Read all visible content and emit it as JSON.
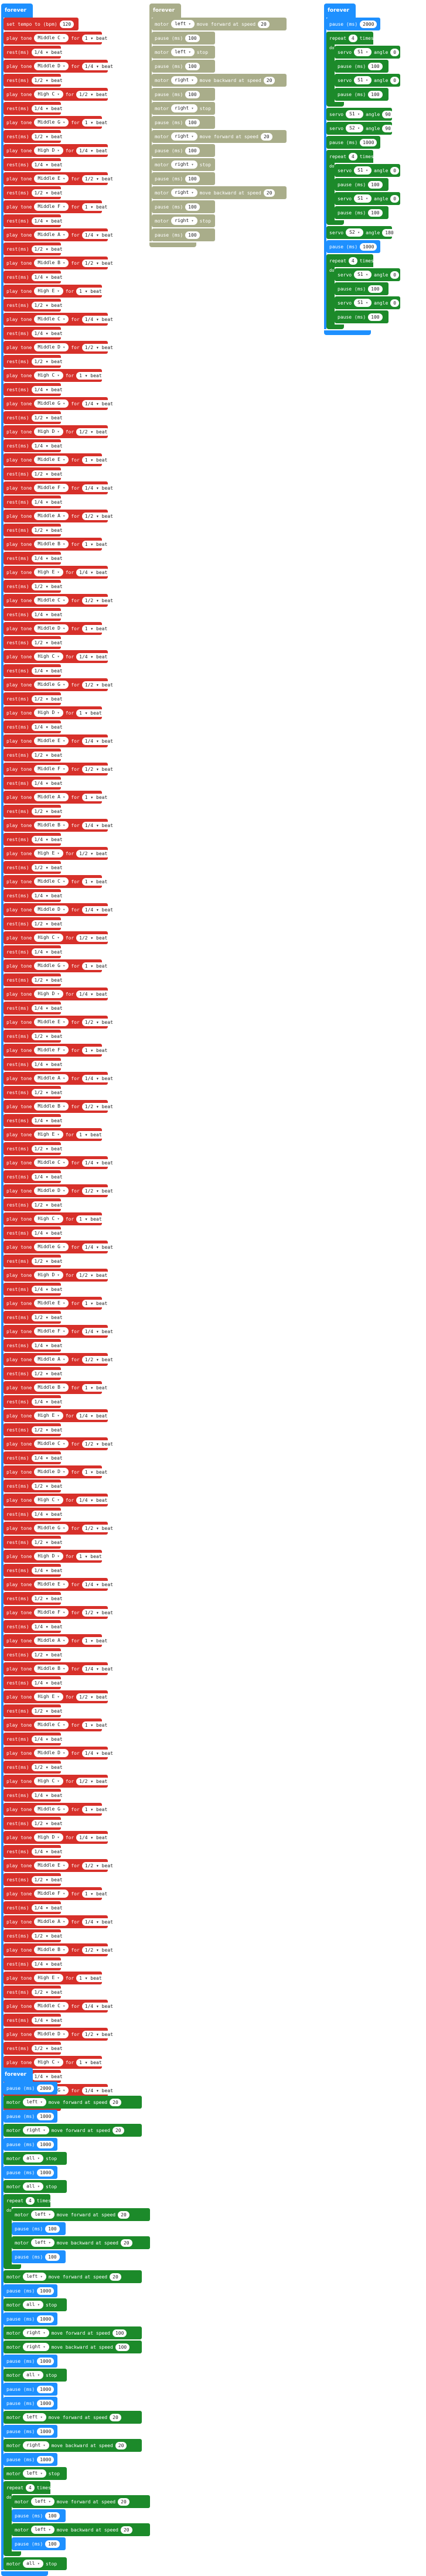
{
  "music_stack": {
    "hat": "forever",
    "first": {
      "label": "set tempo to (bpm)",
      "value": "120"
    },
    "play_label": "play tone",
    "for_label": "for",
    "rest_label": "rest(ms)",
    "beat_label": "beat",
    "notes": [
      "Middle C",
      "Middle D",
      "High C",
      "Middle G",
      "High D",
      "Middle E",
      "Middle F",
      "Middle A",
      "Middle B",
      "High E"
    ],
    "durations": [
      "1 ▾ beat",
      "1/2 ▾ beat",
      "1/4 ▾ beat"
    ],
    "rest_values": [
      "1/4 ▾ beat",
      "1/2 ▾ beat"
    ]
  },
  "olive_stack": {
    "hat": "forever",
    "lines": [
      {
        "kind": "motor",
        "text": "motor",
        "side": "left",
        "dir": "move forward",
        "speed": "20"
      },
      {
        "kind": "pause",
        "text": "pause (ms)",
        "value": "100"
      },
      {
        "kind": "stop",
        "text": "motor",
        "side": "left",
        "action": "stop"
      },
      {
        "kind": "pause",
        "text": "pause (ms)",
        "value": "100"
      },
      {
        "kind": "motor",
        "text": "motor",
        "side": "right",
        "dir": "move backward",
        "speed": "20"
      },
      {
        "kind": "pause",
        "text": "pause (ms)",
        "value": "100"
      },
      {
        "kind": "stop",
        "text": "motor",
        "side": "right",
        "action": "stop"
      },
      {
        "kind": "pause",
        "text": "pause (ms)",
        "value": "100"
      },
      {
        "kind": "motor",
        "text": "motor",
        "side": "right",
        "dir": "move forward",
        "speed": "20"
      },
      {
        "kind": "pause",
        "text": "pause (ms)",
        "value": "100"
      },
      {
        "kind": "stop",
        "text": "motor",
        "side": "right",
        "action": "stop"
      },
      {
        "kind": "pause",
        "text": "pause (ms)",
        "value": "100"
      },
      {
        "kind": "motor",
        "text": "motor",
        "side": "right",
        "dir": "move backward",
        "speed": "20"
      },
      {
        "kind": "pause",
        "text": "pause (ms)",
        "value": "100"
      },
      {
        "kind": "stop",
        "text": "motor",
        "side": "right",
        "action": "stop"
      },
      {
        "kind": "pause",
        "text": "pause (ms)",
        "value": "100"
      }
    ]
  },
  "servo_stack": {
    "hat": "forever",
    "pause1": {
      "label": "pause (ms)",
      "value": "2000"
    },
    "repeat1": {
      "label": "repeat",
      "times": "4",
      "times_label": "times",
      "do": "do"
    },
    "r1_lines": [
      {
        "label": "servo",
        "pin": "S1",
        "angle_label": "angle",
        "value": "0"
      },
      {
        "label": "pause (ms)",
        "value": "100"
      },
      {
        "label": "servo",
        "pin": "S1",
        "angle_label": "angle",
        "value": "0"
      },
      {
        "label": "pause (ms)",
        "value": "100"
      }
    ],
    "mid_lines": [
      {
        "label": "servo",
        "pin": "S1",
        "angle_label": "angle",
        "value": "90"
      },
      {
        "label": "servo",
        "pin": "S2",
        "angle_label": "angle",
        "value": "90"
      },
      {
        "label": "pause (ms)",
        "value": "1000"
      }
    ],
    "repeat2": {
      "label": "repeat",
      "times": "4",
      "times_label": "times",
      "do": "do"
    },
    "r2_lines": [
      {
        "label": "servo",
        "pin": "S1",
        "angle_label": "angle",
        "value": "0"
      },
      {
        "label": "pause (ms)",
        "value": "100"
      },
      {
        "label": "servo",
        "pin": "S1",
        "angle_label": "angle",
        "value": "0"
      },
      {
        "label": "pause (ms)",
        "value": "100"
      }
    ],
    "after2": {
      "label": "servo",
      "pin": "S2",
      "angle_label": "angle",
      "value": "180"
    },
    "pause3": {
      "label": "pause (ms)",
      "value": "1000"
    },
    "repeat3": {
      "label": "repeat",
      "times": "4",
      "times_label": "times",
      "do": "do"
    },
    "r3_lines": [
      {
        "label": "servo",
        "pin": "S1",
        "angle_label": "angle",
        "value": "0"
      },
      {
        "label": "pause (ms)",
        "value": "100"
      },
      {
        "label": "servo",
        "pin": "S1",
        "angle_label": "angle",
        "value": "0"
      },
      {
        "label": "pause (ms)",
        "value": "100"
      }
    ]
  },
  "motor_stack": {
    "hat": "forever",
    "lines": [
      {
        "label": "pause (ms)",
        "value": "2000",
        "kind": "pause"
      },
      {
        "label": "motor",
        "side": "left",
        "dir": "move forward",
        "speed": "20",
        "kind": "motor"
      },
      {
        "label": "pause (ms)",
        "value": "1000",
        "kind": "pause"
      },
      {
        "label": "motor",
        "side": "right",
        "dir": "move forward",
        "speed": "20",
        "kind": "motor"
      },
      {
        "label": "pause (ms)",
        "value": "1000",
        "kind": "pause"
      },
      {
        "label": "motor",
        "side": "all",
        "action": "stop",
        "kind": "stop"
      },
      {
        "label": "pause (ms)",
        "value": "1000",
        "kind": "pause"
      },
      {
        "label": "motor",
        "side": "all",
        "action": "stop",
        "kind": "stop"
      }
    ],
    "repeat1": {
      "label": "repeat",
      "times": "4",
      "times_label": "times",
      "do": "do"
    },
    "r1_lines": [
      {
        "label": "motor",
        "side": "left",
        "dir": "move forward",
        "speed": "20",
        "kind": "motor"
      },
      {
        "label": "pause (ms)",
        "value": "100",
        "kind": "pause"
      },
      {
        "label": "motor",
        "side": "left",
        "dir": "move backward",
        "speed": "20",
        "kind": "motor"
      },
      {
        "label": "pause (ms)",
        "value": "100",
        "kind": "pause"
      }
    ],
    "lines2": [
      {
        "label": "motor",
        "side": "left",
        "dir": "move forward",
        "speed": "20",
        "kind": "motor"
      },
      {
        "label": "pause (ms)",
        "value": "1000",
        "kind": "pause"
      },
      {
        "label": "motor",
        "side": "all",
        "action": "stop",
        "kind": "stop"
      },
      {
        "label": "pause (ms)",
        "value": "1000",
        "kind": "pause"
      },
      {
        "label": "motor",
        "side": "right",
        "dir": "move forward",
        "speed": "100",
        "kind": "motor"
      },
      {
        "label": "motor",
        "side": "right",
        "dir": "move backward",
        "speed": "100",
        "kind": "motor"
      },
      {
        "label": "pause (ms)",
        "value": "1000",
        "kind": "pause"
      },
      {
        "label": "motor",
        "side": "all",
        "action": "stop",
        "kind": "stop"
      },
      {
        "label": "pause (ms)",
        "value": "1000",
        "kind": "pause"
      },
      {
        "label": "pause (ms)",
        "value": "1000",
        "kind": "pause"
      },
      {
        "label": "motor",
        "side": "left",
        "dir": "move forward",
        "speed": "20",
        "kind": "motor"
      },
      {
        "label": "pause (ms)",
        "value": "1000",
        "kind": "pause"
      },
      {
        "label": "motor",
        "side": "right",
        "dir": "move backward",
        "speed": "20",
        "kind": "motor"
      },
      {
        "label": "pause (ms)",
        "value": "1000",
        "kind": "pause"
      },
      {
        "label": "motor",
        "side": "left",
        "action": "stop",
        "kind": "stop"
      }
    ],
    "repeat2": {
      "label": "repeat",
      "times": "4",
      "times_label": "times",
      "do": "do"
    },
    "r2_lines": [
      {
        "label": "motor",
        "side": "left",
        "dir": "move forward",
        "speed": "20",
        "kind": "motor"
      },
      {
        "label": "pause (ms)",
        "value": "100",
        "kind": "pause"
      },
      {
        "label": "motor",
        "side": "left",
        "dir": "move backward",
        "speed": "20",
        "kind": "motor"
      },
      {
        "label": "pause (ms)",
        "value": "100",
        "kind": "pause"
      }
    ],
    "last": {
      "label": "motor",
      "side": "all",
      "action": "stop",
      "kind": "stop"
    }
  }
}
